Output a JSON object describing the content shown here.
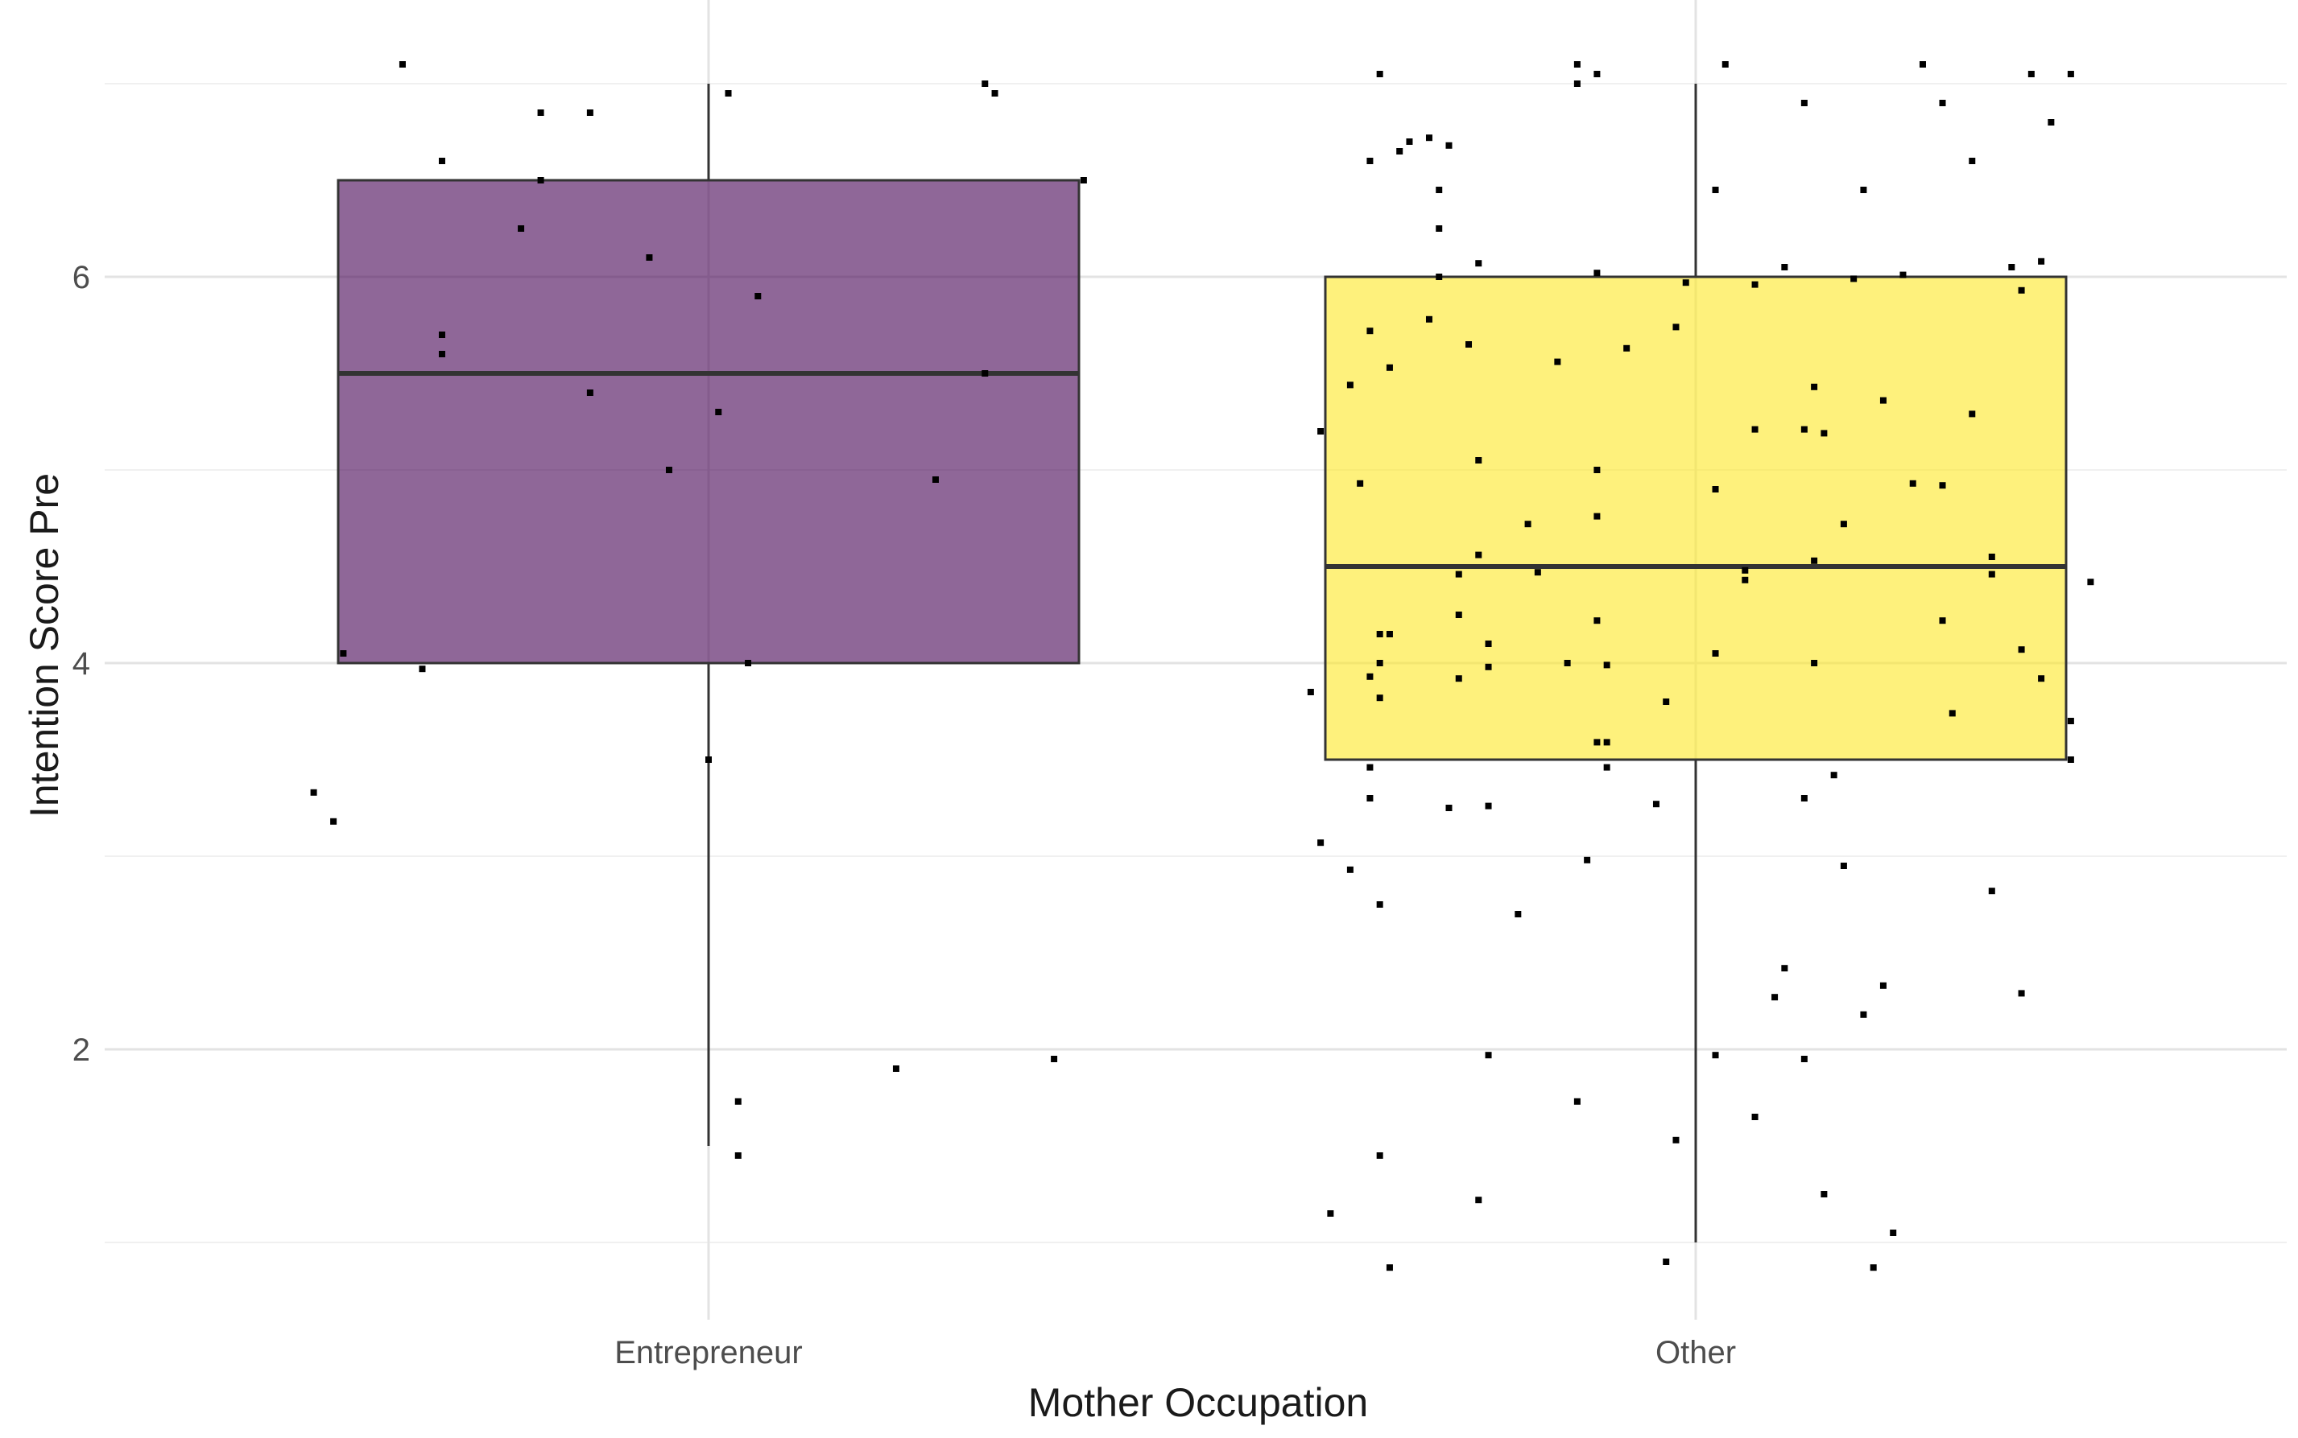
{
  "chart_data": {
    "type": "box",
    "xlabel": "Mother Occupation",
    "ylabel": "Intention Score Pre",
    "categories": [
      "Entrepreneur",
      "Other"
    ],
    "ylim": [
      0.6,
      7.4
    ],
    "yticks": [
      2,
      4,
      6
    ],
    "grid": true,
    "legend": "none",
    "boxes": [
      {
        "category": "Entrepreneur",
        "color": "#440154",
        "fill_opacity": 0.6,
        "whisker_low": 1.5,
        "q1": 4.0,
        "median": 5.5,
        "q3": 6.5,
        "whisker_high": 7.0
      },
      {
        "category": "Other",
        "color": "#FDE725",
        "fill_opacity": 0.6,
        "whisker_low": 1.0,
        "q1": 3.5,
        "median": 4.5,
        "q3": 6.0,
        "whisker_high": 7.0
      }
    ],
    "points": [
      {
        "category": "Entrepreneur",
        "jitter": -0.31,
        "y": 7.1
      },
      {
        "category": "Entrepreneur",
        "jitter": -0.27,
        "y": 6.6
      },
      {
        "category": "Entrepreneur",
        "jitter": -0.17,
        "y": 6.85
      },
      {
        "category": "Entrepreneur",
        "jitter": -0.12,
        "y": 6.85
      },
      {
        "category": "Entrepreneur",
        "jitter": -0.17,
        "y": 6.5
      },
      {
        "category": "Entrepreneur",
        "jitter": -0.19,
        "y": 6.25
      },
      {
        "category": "Entrepreneur",
        "jitter": -0.06,
        "y": 6.1
      },
      {
        "category": "Entrepreneur",
        "jitter": 0.05,
        "y": 5.9
      },
      {
        "category": "Entrepreneur",
        "jitter": -0.27,
        "y": 5.7
      },
      {
        "category": "Entrepreneur",
        "jitter": -0.27,
        "y": 5.6
      },
      {
        "category": "Entrepreneur",
        "jitter": -0.12,
        "y": 5.4
      },
      {
        "category": "Entrepreneur",
        "jitter": 0.01,
        "y": 5.3
      },
      {
        "category": "Entrepreneur",
        "jitter": -0.04,
        "y": 5.0
      },
      {
        "category": "Entrepreneur",
        "jitter": 0.02,
        "y": 6.95
      },
      {
        "category": "Entrepreneur",
        "jitter": 0.28,
        "y": 7.0
      },
      {
        "category": "Entrepreneur",
        "jitter": 0.29,
        "y": 6.95
      },
      {
        "category": "Entrepreneur",
        "jitter": 0.38,
        "y": 6.5
      },
      {
        "category": "Entrepreneur",
        "jitter": 0.28,
        "y": 5.5
      },
      {
        "category": "Entrepreneur",
        "jitter": 0.23,
        "y": 4.95
      },
      {
        "category": "Entrepreneur",
        "jitter": -0.37,
        "y": 4.05
      },
      {
        "category": "Entrepreneur",
        "jitter": -0.29,
        "y": 3.97
      },
      {
        "category": "Entrepreneur",
        "jitter": 0.04,
        "y": 4.0
      },
      {
        "category": "Entrepreneur",
        "jitter": 0.0,
        "y": 3.5
      },
      {
        "category": "Entrepreneur",
        "jitter": -0.4,
        "y": 3.33
      },
      {
        "category": "Entrepreneur",
        "jitter": -0.38,
        "y": 3.18
      },
      {
        "category": "Entrepreneur",
        "jitter": 0.19,
        "y": 1.9
      },
      {
        "category": "Entrepreneur",
        "jitter": 0.35,
        "y": 1.95
      },
      {
        "category": "Entrepreneur",
        "jitter": 0.03,
        "y": 1.73
      },
      {
        "category": "Entrepreneur",
        "jitter": 0.03,
        "y": 1.45
      },
      {
        "category": "Other",
        "jitter": -0.32,
        "y": 7.05
      },
      {
        "category": "Other",
        "jitter": -0.12,
        "y": 7.1
      },
      {
        "category": "Other",
        "jitter": -0.1,
        "y": 7.05
      },
      {
        "category": "Other",
        "jitter": 0.03,
        "y": 7.1
      },
      {
        "category": "Other",
        "jitter": 0.23,
        "y": 7.1
      },
      {
        "category": "Other",
        "jitter": 0.34,
        "y": 7.05
      },
      {
        "category": "Other",
        "jitter": 0.38,
        "y": 7.05
      },
      {
        "category": "Other",
        "jitter": -0.12,
        "y": 7.0
      },
      {
        "category": "Other",
        "jitter": 0.11,
        "y": 6.9
      },
      {
        "category": "Other",
        "jitter": 0.25,
        "y": 6.9
      },
      {
        "category": "Other",
        "jitter": 0.36,
        "y": 6.8
      },
      {
        "category": "Other",
        "jitter": -0.3,
        "y": 6.65
      },
      {
        "category": "Other",
        "jitter": -0.29,
        "y": 6.7
      },
      {
        "category": "Other",
        "jitter": -0.27,
        "y": 6.72
      },
      {
        "category": "Other",
        "jitter": -0.25,
        "y": 6.68
      },
      {
        "category": "Other",
        "jitter": 0.28,
        "y": 6.6
      },
      {
        "category": "Other",
        "jitter": -0.33,
        "y": 6.6
      },
      {
        "category": "Other",
        "jitter": -0.26,
        "y": 6.45
      },
      {
        "category": "Other",
        "jitter": 0.02,
        "y": 6.45
      },
      {
        "category": "Other",
        "jitter": 0.17,
        "y": 6.45
      },
      {
        "category": "Other",
        "jitter": -0.26,
        "y": 6.25
      },
      {
        "category": "Other",
        "jitter": -0.22,
        "y": 6.07
      },
      {
        "category": "Other",
        "jitter": 0.09,
        "y": 6.05
      },
      {
        "category": "Other",
        "jitter": 0.32,
        "y": 6.05
      },
      {
        "category": "Other",
        "jitter": 0.35,
        "y": 6.08
      },
      {
        "category": "Other",
        "jitter": -0.1,
        "y": 6.02
      },
      {
        "category": "Other",
        "jitter": 0.21,
        "y": 6.01
      },
      {
        "category": "Other",
        "jitter": -0.26,
        "y": 6.0
      },
      {
        "category": "Other",
        "jitter": -0.01,
        "y": 5.97
      },
      {
        "category": "Other",
        "jitter": 0.16,
        "y": 5.99
      },
      {
        "category": "Other",
        "jitter": 0.06,
        "y": 5.96
      },
      {
        "category": "Other",
        "jitter": 0.33,
        "y": 5.93
      },
      {
        "category": "Other",
        "jitter": -0.27,
        "y": 5.78
      },
      {
        "category": "Other",
        "jitter": -0.33,
        "y": 5.72
      },
      {
        "category": "Other",
        "jitter": -0.02,
        "y": 5.74
      },
      {
        "category": "Other",
        "jitter": -0.23,
        "y": 5.65
      },
      {
        "category": "Other",
        "jitter": -0.07,
        "y": 5.63
      },
      {
        "category": "Other",
        "jitter": -0.14,
        "y": 5.56
      },
      {
        "category": "Other",
        "jitter": -0.31,
        "y": 5.53
      },
      {
        "category": "Other",
        "jitter": -0.35,
        "y": 5.44
      },
      {
        "category": "Other",
        "jitter": 0.12,
        "y": 5.43
      },
      {
        "category": "Other",
        "jitter": 0.19,
        "y": 5.36
      },
      {
        "category": "Other",
        "jitter": 0.28,
        "y": 5.29
      },
      {
        "category": "Other",
        "jitter": -0.38,
        "y": 5.2
      },
      {
        "category": "Other",
        "jitter": 0.06,
        "y": 5.21
      },
      {
        "category": "Other",
        "jitter": 0.11,
        "y": 5.21
      },
      {
        "category": "Other",
        "jitter": 0.13,
        "y": 5.19
      },
      {
        "category": "Other",
        "jitter": -0.22,
        "y": 5.05
      },
      {
        "category": "Other",
        "jitter": -0.1,
        "y": 5.0
      },
      {
        "category": "Other",
        "jitter": -0.34,
        "y": 4.93
      },
      {
        "category": "Other",
        "jitter": 0.02,
        "y": 4.9
      },
      {
        "category": "Other",
        "jitter": 0.22,
        "y": 4.93
      },
      {
        "category": "Other",
        "jitter": 0.25,
        "y": 4.92
      },
      {
        "category": "Other",
        "jitter": -0.1,
        "y": 4.76
      },
      {
        "category": "Other",
        "jitter": -0.17,
        "y": 4.72
      },
      {
        "category": "Other",
        "jitter": 0.15,
        "y": 4.72
      },
      {
        "category": "Other",
        "jitter": -0.22,
        "y": 4.56
      },
      {
        "category": "Other",
        "jitter": 0.12,
        "y": 4.53
      },
      {
        "category": "Other",
        "jitter": 0.3,
        "y": 4.55
      },
      {
        "category": "Other",
        "jitter": -0.24,
        "y": 4.46
      },
      {
        "category": "Other",
        "jitter": -0.16,
        "y": 4.47
      },
      {
        "category": "Other",
        "jitter": 0.05,
        "y": 4.48
      },
      {
        "category": "Other",
        "jitter": 0.05,
        "y": 4.43
      },
      {
        "category": "Other",
        "jitter": 0.3,
        "y": 4.46
      },
      {
        "category": "Other",
        "jitter": 0.4,
        "y": 4.42
      },
      {
        "category": "Other",
        "jitter": -0.24,
        "y": 4.25
      },
      {
        "category": "Other",
        "jitter": -0.1,
        "y": 4.22
      },
      {
        "category": "Other",
        "jitter": 0.25,
        "y": 4.22
      },
      {
        "category": "Other",
        "jitter": -0.32,
        "y": 4.15
      },
      {
        "category": "Other",
        "jitter": -0.31,
        "y": 4.15
      },
      {
        "category": "Other",
        "jitter": -0.21,
        "y": 4.1
      },
      {
        "category": "Other",
        "jitter": 0.02,
        "y": 4.05
      },
      {
        "category": "Other",
        "jitter": 0.33,
        "y": 4.07
      },
      {
        "category": "Other",
        "jitter": -0.32,
        "y": 4.0
      },
      {
        "category": "Other",
        "jitter": -0.21,
        "y": 3.98
      },
      {
        "category": "Other",
        "jitter": -0.13,
        "y": 4.0
      },
      {
        "category": "Other",
        "jitter": -0.09,
        "y": 3.99
      },
      {
        "category": "Other",
        "jitter": 0.12,
        "y": 4.0
      },
      {
        "category": "Other",
        "jitter": -0.33,
        "y": 3.93
      },
      {
        "category": "Other",
        "jitter": -0.24,
        "y": 3.92
      },
      {
        "category": "Other",
        "jitter": 0.35,
        "y": 3.92
      },
      {
        "category": "Other",
        "jitter": -0.39,
        "y": 3.85
      },
      {
        "category": "Other",
        "jitter": -0.32,
        "y": 3.82
      },
      {
        "category": "Other",
        "jitter": -0.03,
        "y": 3.8
      },
      {
        "category": "Other",
        "jitter": 0.26,
        "y": 3.74
      },
      {
        "category": "Other",
        "jitter": 0.38,
        "y": 3.7
      },
      {
        "category": "Other",
        "jitter": -0.1,
        "y": 3.59
      },
      {
        "category": "Other",
        "jitter": -0.09,
        "y": 3.59
      },
      {
        "category": "Other",
        "jitter": 0.38,
        "y": 3.5
      },
      {
        "category": "Other",
        "jitter": -0.33,
        "y": 3.46
      },
      {
        "category": "Other",
        "jitter": -0.09,
        "y": 3.46
      },
      {
        "category": "Other",
        "jitter": 0.14,
        "y": 3.42
      },
      {
        "category": "Other",
        "jitter": -0.33,
        "y": 3.3
      },
      {
        "category": "Other",
        "jitter": 0.11,
        "y": 3.3
      },
      {
        "category": "Other",
        "jitter": -0.25,
        "y": 3.25
      },
      {
        "category": "Other",
        "jitter": -0.21,
        "y": 3.26
      },
      {
        "category": "Other",
        "jitter": -0.04,
        "y": 3.27
      },
      {
        "category": "Other",
        "jitter": -0.38,
        "y": 3.07
      },
      {
        "category": "Other",
        "jitter": -0.11,
        "y": 2.98
      },
      {
        "category": "Other",
        "jitter": -0.35,
        "y": 2.93
      },
      {
        "category": "Other",
        "jitter": 0.15,
        "y": 2.95
      },
      {
        "category": "Other",
        "jitter": 0.3,
        "y": 2.82
      },
      {
        "category": "Other",
        "jitter": -0.32,
        "y": 2.75
      },
      {
        "category": "Other",
        "jitter": -0.18,
        "y": 2.7
      },
      {
        "category": "Other",
        "jitter": 0.09,
        "y": 2.42
      },
      {
        "category": "Other",
        "jitter": 0.19,
        "y": 2.33
      },
      {
        "category": "Other",
        "jitter": 0.08,
        "y": 2.27
      },
      {
        "category": "Other",
        "jitter": 0.33,
        "y": 2.29
      },
      {
        "category": "Other",
        "jitter": 0.17,
        "y": 2.18
      },
      {
        "category": "Other",
        "jitter": -0.21,
        "y": 1.97
      },
      {
        "category": "Other",
        "jitter": 0.02,
        "y": 1.97
      },
      {
        "category": "Other",
        "jitter": 0.11,
        "y": 1.95
      },
      {
        "category": "Other",
        "jitter": -0.12,
        "y": 1.73
      },
      {
        "category": "Other",
        "jitter": 0.06,
        "y": 1.65
      },
      {
        "category": "Other",
        "jitter": -0.02,
        "y": 1.53
      },
      {
        "category": "Other",
        "jitter": -0.32,
        "y": 1.45
      },
      {
        "category": "Other",
        "jitter": 0.13,
        "y": 1.25
      },
      {
        "category": "Other",
        "jitter": -0.22,
        "y": 1.22
      },
      {
        "category": "Other",
        "jitter": -0.37,
        "y": 1.15
      },
      {
        "category": "Other",
        "jitter": 0.2,
        "y": 1.05
      },
      {
        "category": "Other",
        "jitter": -0.03,
        "y": 0.9
      },
      {
        "category": "Other",
        "jitter": -0.31,
        "y": 0.87
      },
      {
        "category": "Other",
        "jitter": 0.18,
        "y": 0.87
      }
    ]
  }
}
